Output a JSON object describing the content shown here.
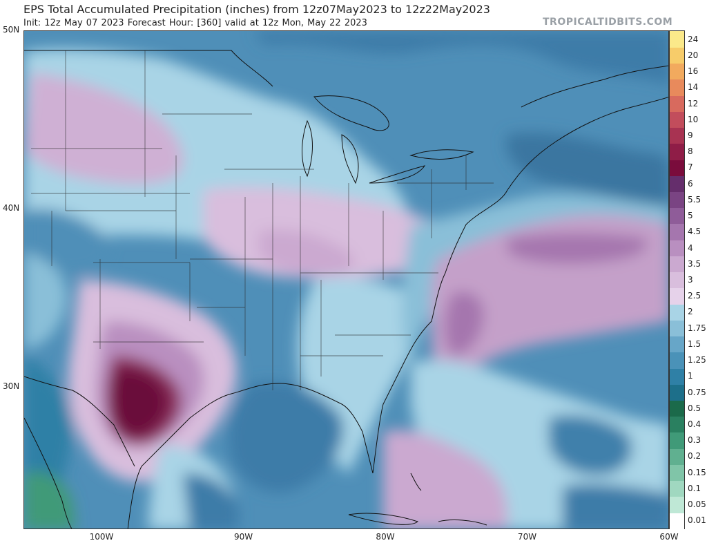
{
  "header": {
    "title": "EPS Total Accumulated Precipitation (inches) from 12z07May2023 to 12z22May2023",
    "subtitle": "Init: 12z May 07 2023   Forecast Hour: [360]   valid at 12z Mon, May 22 2023",
    "brand": "TROPICALTIDBITS.COM"
  },
  "map": {
    "lat_labels": [
      {
        "text": "50N",
        "lat": 50
      },
      {
        "text": "40N",
        "lat": 40
      },
      {
        "text": "30N",
        "lat": 30
      }
    ],
    "lon_labels": [
      {
        "text": "100W",
        "lon": -100
      },
      {
        "text": "90W",
        "lon": -90
      },
      {
        "text": "80W",
        "lon": -80
      },
      {
        "text": "70W",
        "lon": -70
      },
      {
        "text": "60W",
        "lon": -60
      }
    ],
    "background_color": "#4f8fb8",
    "precip_areas": [
      {
        "region": "south-texas-max",
        "color": "#6b0f3a"
      },
      {
        "region": "texas-heavy",
        "color": "#8a2a5a"
      },
      {
        "region": "atlantic-band",
        "color": "#c4a0c9"
      },
      {
        "region": "ohio-valley",
        "color": "#cfb0d4"
      },
      {
        "region": "gulf-low",
        "color": "#3c7ca8"
      },
      {
        "region": "west-atlantic-low",
        "color": "#3f80ab"
      }
    ]
  },
  "colorbar": {
    "levels": [
      "0.01",
      "0.05",
      "0.1",
      "0.15",
      "0.2",
      "0.3",
      "0.4",
      "0.5",
      "0.75",
      "1",
      "1.25",
      "1.5",
      "1.75",
      "2",
      "2.5",
      "3",
      "3.5",
      "4",
      "4.5",
      "5",
      "5.5",
      "6",
      "7",
      "8",
      "9",
      "10",
      "12",
      "14",
      "16",
      "20",
      "24"
    ],
    "colors": [
      "#ffffff",
      "#bfe8d6",
      "#a0d8c0",
      "#80c5a8",
      "#60b090",
      "#409a78",
      "#2a8060",
      "#1b6a4a",
      "#1d6f8a",
      "#2f80a6",
      "#4a92b8",
      "#67a6c8",
      "#8abfd8",
      "#a9d4e6",
      "#e6d2ea",
      "#d9bedd",
      "#cba9d0",
      "#b98fc0",
      "#a576ae",
      "#8f5c99",
      "#7a4483",
      "#652e6c",
      "#7a0c3c",
      "#8f1d47",
      "#a83352",
      "#c24d5c",
      "#d86a5e",
      "#e88a5c",
      "#f2aa5e",
      "#f7cc6a",
      "#fbe98a"
    ]
  }
}
